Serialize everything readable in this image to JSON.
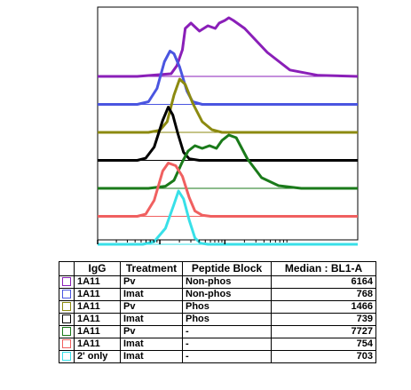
{
  "chart_data": {
    "type": "area",
    "title": "",
    "xlabel": "",
    "ylabel": "",
    "x_scale": "log",
    "series": [
      {
        "legend_index": 0,
        "color": "#8a1fb8",
        "points": [
          [
            60,
            0
          ],
          [
            130,
            0
          ],
          [
            190,
            0.05
          ],
          [
            200,
            0.2
          ],
          [
            210,
            0.5
          ],
          [
            215,
            0.9
          ],
          [
            225,
            1.0
          ],
          [
            240,
            0.85
          ],
          [
            255,
            0.95
          ],
          [
            268,
            0.9
          ],
          [
            275,
            1.0
          ],
          [
            285,
            1.05
          ],
          [
            292,
            1.1
          ],
          [
            300,
            1.05
          ],
          [
            320,
            0.9
          ],
          [
            360,
            0.45
          ],
          [
            400,
            0.12
          ],
          [
            450,
            0.02
          ],
          [
            520,
            0
          ]
        ]
      },
      {
        "legend_index": 1,
        "color": "#4a55e0",
        "points": [
          [
            60,
            0
          ],
          [
            130,
            0
          ],
          [
            150,
            0.05
          ],
          [
            165,
            0.3
          ],
          [
            178,
            0.8
          ],
          [
            188,
            1.0
          ],
          [
            195,
            0.95
          ],
          [
            205,
            0.7
          ],
          [
            218,
            0.25
          ],
          [
            228,
            0.05
          ],
          [
            245,
            0
          ],
          [
            520,
            0
          ]
        ]
      },
      {
        "legend_index": 2,
        "color": "#8c8a10",
        "points": [
          [
            60,
            0
          ],
          [
            150,
            0
          ],
          [
            170,
            0.04
          ],
          [
            183,
            0.2
          ],
          [
            195,
            0.7
          ],
          [
            205,
            1.0
          ],
          [
            215,
            0.9
          ],
          [
            228,
            0.55
          ],
          [
            245,
            0.2
          ],
          [
            262,
            0.05
          ],
          [
            280,
            0
          ],
          [
            520,
            0
          ]
        ]
      },
      {
        "legend_index": 3,
        "color": "#000000",
        "points": [
          [
            60,
            0
          ],
          [
            130,
            0
          ],
          [
            145,
            0.04
          ],
          [
            160,
            0.25
          ],
          [
            175,
            0.75
          ],
          [
            185,
            1.0
          ],
          [
            193,
            0.85
          ],
          [
            202,
            0.5
          ],
          [
            212,
            0.15
          ],
          [
            222,
            0.03
          ],
          [
            240,
            0
          ],
          [
            520,
            0
          ]
        ]
      },
      {
        "legend_index": 4,
        "color": "#1a7a1a",
        "points": [
          [
            60,
            0
          ],
          [
            150,
            0
          ],
          [
            180,
            0.04
          ],
          [
            195,
            0.15
          ],
          [
            210,
            0.5
          ],
          [
            220,
            0.7
          ],
          [
            232,
            0.8
          ],
          [
            245,
            0.75
          ],
          [
            258,
            0.8
          ],
          [
            270,
            0.75
          ],
          [
            280,
            0.9
          ],
          [
            292,
            1.0
          ],
          [
            305,
            0.95
          ],
          [
            325,
            0.55
          ],
          [
            350,
            0.2
          ],
          [
            380,
            0.05
          ],
          [
            420,
            0
          ],
          [
            520,
            0
          ]
        ]
      },
      {
        "legend_index": 5,
        "color": "#f06060",
        "points": [
          [
            60,
            0
          ],
          [
            130,
            0
          ],
          [
            145,
            0.04
          ],
          [
            160,
            0.3
          ],
          [
            175,
            0.85
          ],
          [
            185,
            1.0
          ],
          [
            198,
            0.95
          ],
          [
            210,
            0.75
          ],
          [
            222,
            0.35
          ],
          [
            232,
            0.1
          ],
          [
            245,
            0.02
          ],
          [
            260,
            0
          ],
          [
            520,
            0
          ]
        ]
      },
      {
        "legend_index": 6,
        "color": "#38e0e8",
        "points": [
          [
            60,
            0
          ],
          [
            140,
            0
          ],
          [
            160,
            0.05
          ],
          [
            180,
            0.3
          ],
          [
            195,
            0.75
          ],
          [
            203,
            1.0
          ],
          [
            212,
            0.85
          ],
          [
            222,
            0.45
          ],
          [
            232,
            0.12
          ],
          [
            242,
            0.02
          ],
          [
            255,
            0
          ],
          [
            520,
            0
          ]
        ]
      }
    ],
    "legend": {
      "headers": [
        "",
        "IgG",
        "Treatment",
        "Peptide Block",
        "Median : BL1-A"
      ],
      "rows": [
        {
          "color": "#8a1fb8",
          "igg": "1A11",
          "treatment": "Pv",
          "peptide_block": "Non-phos",
          "median": "6164"
        },
        {
          "color": "#4a55e0",
          "igg": "1A11",
          "treatment": "Imat",
          "peptide_block": "Non-phos",
          "median": "768"
        },
        {
          "color": "#8c8a10",
          "igg": "1A11",
          "treatment": "Pv",
          "peptide_block": "Phos",
          "median": "1466"
        },
        {
          "color": "#000000",
          "igg": "1A11",
          "treatment": "Imat",
          "peptide_block": "Phos",
          "median": "739"
        },
        {
          "color": "#1a7a1a",
          "igg": "1A11",
          "treatment": "Pv",
          "peptide_block": "-",
          "median": "7727"
        },
        {
          "color": "#f06060",
          "igg": "1A11",
          "treatment": "Imat",
          "peptide_block": "-",
          "median": "754"
        },
        {
          "color": "#38e0e8",
          "igg": "2' only",
          "treatment": "Imat",
          "peptide_block": "-",
          "median": "703"
        }
      ]
    }
  }
}
